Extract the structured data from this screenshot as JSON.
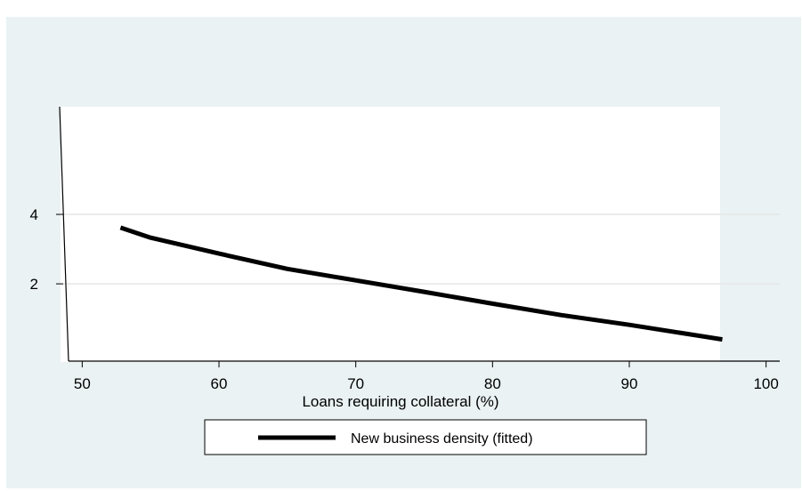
{
  "chart_data": {
    "type": "line",
    "title": "",
    "xlabel": "Loans requiring collateral (%)",
    "ylabel": "",
    "xlim": [
      49,
      101
    ],
    "ylim": [
      -0.2,
      7.1
    ],
    "x_ticks": [
      50,
      60,
      70,
      80,
      90,
      100
    ],
    "y_ticks": [
      2,
      4
    ],
    "grid": "horizontal",
    "legend_position": "bottom",
    "series": [
      {
        "name": "New business density (fitted)",
        "color": "#000000",
        "x": [
          52.8,
          55,
          60,
          65,
          70,
          75,
          80,
          85,
          90,
          96.8
        ],
        "y": [
          3.62,
          3.33,
          2.87,
          2.43,
          2.1,
          1.77,
          1.43,
          1.1,
          0.82,
          0.4
        ]
      }
    ]
  }
}
